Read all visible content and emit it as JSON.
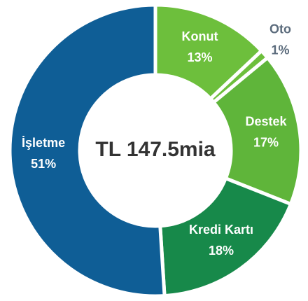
{
  "chart_data": {
    "type": "donut",
    "center_label": "TL 147.5mia",
    "categories": [
      "Konut",
      "Oto",
      "Destek",
      "Kredi Kartı",
      "İşletme"
    ],
    "values": [
      13,
      1,
      17,
      18,
      51
    ],
    "value_labels": [
      "13%",
      "1%",
      "17%",
      "18%",
      "51%"
    ],
    "colors": [
      "#6dbf3c",
      "#6dbf3c",
      "#5fb53a",
      "#17894a",
      "#0f5e96"
    ]
  }
}
